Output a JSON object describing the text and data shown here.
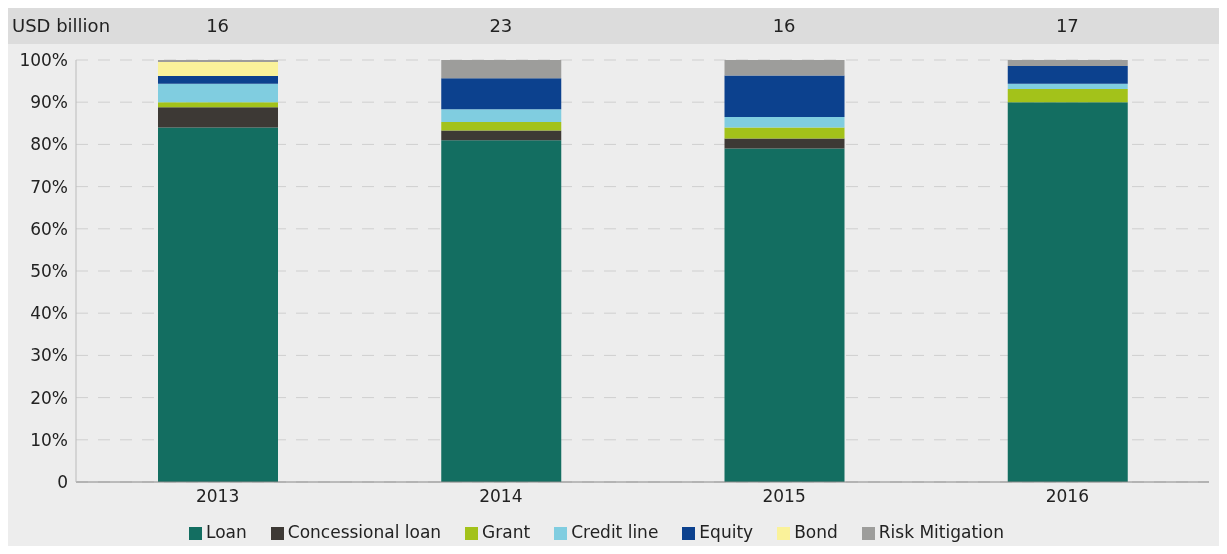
{
  "chart_data": {
    "type": "bar",
    "stacked": true,
    "categories": [
      "2013",
      "2014",
      "2015",
      "2016"
    ],
    "series": [
      {
        "name": "Loan",
        "color": "#136e61",
        "values": [
          84,
          81,
          79,
          90
        ]
      },
      {
        "name": "Concessional loan",
        "color": "#3d3935",
        "values": [
          4.8,
          2.3,
          2.4,
          null
        ]
      },
      {
        "name": "Grant",
        "color": "#a3c21a",
        "values": [
          1.2,
          2,
          2.6,
          3.1
        ]
      },
      {
        "name": "Credit line",
        "color": "#80cde0",
        "values": [
          4.4,
          3,
          2.5,
          1.3
        ]
      },
      {
        "name": "Equity",
        "color": "#0c418e",
        "values": [
          1.8,
          7.4,
          9.8,
          4.2
        ]
      },
      {
        "name": "Bond",
        "color": "#faf29a",
        "values": [
          3.3,
          null,
          null,
          null
        ]
      },
      {
        "name": "Risk Mitigation",
        "color": "#9d9d9b",
        "values": [
          0.5,
          4.3,
          3.7,
          1.4
        ]
      }
    ],
    "ylim": [
      0,
      100
    ],
    "yticks": [
      {
        "value": 0,
        "label": "0"
      },
      {
        "value": 10,
        "label": "10%"
      },
      {
        "value": 20,
        "label": "20%"
      },
      {
        "value": 30,
        "label": "30%"
      },
      {
        "value": 40,
        "label": "40%"
      },
      {
        "value": 50,
        "label": "50%"
      },
      {
        "value": 60,
        "label": "60%"
      },
      {
        "value": 70,
        "label": "70%"
      },
      {
        "value": 80,
        "label": "80%"
      },
      {
        "value": 90,
        "label": "90%"
      },
      {
        "value": 100,
        "label": "100%"
      }
    ],
    "grid": "y",
    "legend": "bottom",
    "annotations": [
      "USD billion",
      "16",
      "23",
      "16",
      "17"
    ]
  }
}
